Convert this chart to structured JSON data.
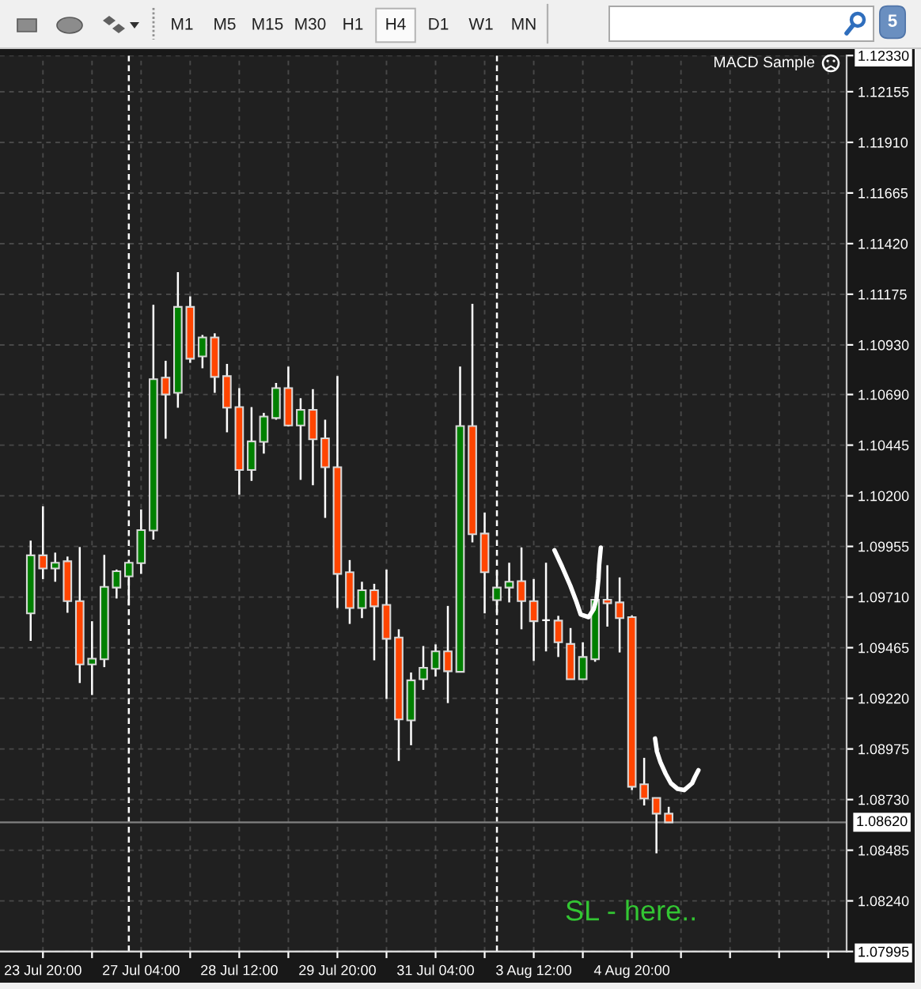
{
  "chart_data": {
    "type": "candlestick",
    "categories": [
      null,
      null,
      null,
      "23 Jul 20:00",
      null,
      null,
      null,
      null,
      null,
      null,
      null,
      "27 Jul 04:00",
      null,
      null,
      null,
      null,
      null,
      null,
      null,
      "28 Jul 12:00",
      null,
      null,
      null,
      null,
      null,
      null,
      null,
      "29 Jul 20:00",
      null,
      null,
      null,
      null,
      null,
      null,
      null,
      "31 Jul 04:00",
      null,
      null,
      null,
      null,
      null,
      null,
      null,
      "3 Aug 12:00",
      null,
      null,
      null,
      null,
      null,
      null,
      null,
      "4 Aug 20:00",
      null,
      null,
      null,
      null,
      null,
      null,
      null,
      null,
      null,
      null,
      null,
      null,
      null,
      null,
      null,
      null,
      null
    ],
    "ohlc": [
      null,
      null,
      [
        1.09631,
        1.09983,
        1.09498,
        1.09912
      ],
      [
        1.09912,
        1.10149,
        1.09797,
        1.09848
      ],
      [
        1.09848,
        1.09925,
        1.09784,
        1.09876
      ],
      [
        1.09883,
        1.09906,
        1.09634,
        1.0969
      ],
      [
        1.0969,
        1.09952,
        1.09294,
        1.09384
      ],
      [
        1.09384,
        1.09593,
        1.09236,
        1.09412
      ],
      [
        1.09409,
        1.09914,
        1.09371,
        1.09759
      ],
      [
        1.09756,
        1.09843,
        1.09703,
        1.09835
      ],
      [
        1.0981,
        1.09881,
        1.09669,
        1.09876
      ],
      [
        1.09874,
        1.10134,
        1.09822,
        1.10034
      ],
      [
        1.10032,
        1.11124,
        1.09988,
        1.10764
      ],
      [
        1.10772,
        1.10853,
        1.10476,
        1.1069
      ],
      [
        1.10698,
        1.11282,
        1.10626,
        1.11114
      ],
      [
        1.11114,
        1.11165,
        1.10843,
        1.10863
      ],
      [
        1.10874,
        1.10978,
        1.10817,
        1.10966
      ],
      [
        1.10966,
        1.10986,
        1.10698,
        1.10775
      ],
      [
        1.10779,
        1.10838,
        1.10507,
        1.10626
      ],
      [
        1.10629,
        1.10721,
        1.10205,
        1.10325
      ],
      [
        1.10325,
        1.10629,
        1.10272,
        1.10463
      ],
      [
        1.10461,
        1.10601,
        1.10404,
        1.10583
      ],
      [
        1.10576,
        1.10746,
        1.10568,
        1.10721
      ],
      [
        1.10721,
        1.10825,
        1.10535,
        1.1054
      ],
      [
        1.1054,
        1.10672,
        1.10277,
        1.10616
      ],
      [
        1.10616,
        1.10716,
        1.10251,
        1.10473
      ],
      [
        1.10478,
        1.10568,
        1.10093,
        1.10338
      ],
      [
        1.10338,
        1.10779,
        1.09657,
        1.09822
      ],
      [
        1.0983,
        1.09889,
        1.0958,
        1.09657
      ],
      [
        1.09657,
        1.09784,
        1.09608,
        1.09743
      ],
      [
        1.09743,
        1.09774,
        1.09404,
        1.09665
      ],
      [
        1.09672,
        1.09843,
        1.09217,
        1.09508
      ],
      [
        1.09514,
        1.09554,
        1.08917,
        1.09118
      ],
      [
        1.09113,
        1.09345,
        1.08993,
        1.09307
      ],
      [
        1.09312,
        1.09473,
        1.09261,
        1.09368
      ],
      [
        1.09363,
        1.09481,
        1.09325,
        1.09447
      ],
      [
        1.09447,
        1.09667,
        1.09197,
        1.09351
      ],
      [
        1.09348,
        1.10825,
        1.09348,
        1.10537
      ],
      [
        1.10537,
        1.11129,
        1.09975,
        1.10014
      ],
      [
        1.10017,
        1.10119,
        1.09631,
        1.0983
      ],
      [
        1.09695,
        1.09835,
        1.09634,
        1.09756
      ],
      [
        1.09756,
        1.09876,
        1.09684,
        1.09784
      ],
      [
        1.09787,
        1.0995,
        1.09554,
        1.0969
      ],
      [
        1.0969,
        1.09797,
        1.09401,
        1.09593
      ],
      [
        1.09598,
        1.09876,
        1.09447,
        1.09598
      ],
      [
        1.09596,
        1.09619,
        1.0942,
        1.09491
      ],
      [
        1.09483,
        1.0956,
        1.09312,
        1.09312
      ],
      [
        1.09312,
        1.09491,
        1.09312,
        1.0942
      ],
      [
        1.09409,
        1.097,
        1.09397,
        1.09697
      ],
      [
        1.09697,
        1.09864,
        1.09567,
        1.0968
      ],
      [
        1.09684,
        1.09805,
        1.09442,
        1.09608
      ],
      [
        1.09613,
        1.09621,
        1.08776,
        1.08792
      ],
      [
        1.08804,
        1.08932,
        1.08702,
        1.08735
      ],
      [
        1.08738,
        1.08738,
        1.0847,
        1.08662
      ],
      [
        1.08662,
        1.08695,
        1.0862,
        1.0862
      ],
      null,
      null,
      null,
      null,
      null,
      null,
      null,
      null,
      null,
      null,
      null,
      null,
      null,
      null
    ],
    "colors": [
      null,
      null,
      "#008000",
      "#ff4500",
      "#008000",
      "#ff4500",
      "#ff4500",
      "#008000",
      "#008000",
      "#008000",
      "#008000",
      "#008000",
      "#008000",
      "#ff4500",
      "#008000",
      "#ff4500",
      "#008000",
      "#ff4500",
      "#ff4500",
      "#ff4500",
      "#008000",
      "#008000",
      "#008000",
      "#ff4500",
      "#008000",
      "#ff4500",
      "#ff4500",
      "#ff4500",
      "#ff4500",
      "#008000",
      "#ff4500",
      "#ff4500",
      "#ff4500",
      "#008000",
      "#008000",
      "#008000",
      "#ff4500",
      "#008000",
      "#ff4500",
      "#ff4500",
      "#008000",
      "#008000",
      "#ff4500",
      "#ff4500",
      "#ffffff",
      "#ff4500",
      "#ff4500",
      "#008000",
      "#008000",
      "#ff4500",
      "#ff4500",
      "#ff4500",
      "#ff4500",
      "#ff4500",
      "#ff4500",
      null,
      null,
      null,
      null,
      null,
      null,
      null,
      null,
      null,
      null,
      null,
      null,
      null,
      null
    ],
    "ylim": [
      1.07995,
      1.1233
    ],
    "yticks": [
      {
        "value": 1.07995,
        "label": "1.07995"
      },
      {
        "value": 1.0824,
        "label": "1.08240"
      },
      {
        "value": 1.08485,
        "label": "1.08485"
      },
      {
        "value": 1.0873,
        "label": "1.08730"
      },
      {
        "value": 1.08975,
        "label": "1.08975"
      },
      {
        "value": 1.0922,
        "label": "1.09220"
      },
      {
        "value": 1.09465,
        "label": "1.09465"
      },
      {
        "value": 1.0971,
        "label": "1.09710"
      },
      {
        "value": 1.09955,
        "label": "1.09955"
      },
      {
        "value": 1.102,
        "label": "1.10200"
      },
      {
        "value": 1.10445,
        "label": "1.10445"
      },
      {
        "value": 1.1069,
        "label": "1.10690"
      },
      {
        "value": 1.1093,
        "label": "1.10930"
      },
      {
        "value": 1.11175,
        "label": "1.11175"
      },
      {
        "value": 1.1142,
        "label": "1.11420"
      },
      {
        "value": 1.11665,
        "label": "1.11665"
      },
      {
        "value": 1.1191,
        "label": "1.11910"
      },
      {
        "value": 1.12155,
        "label": "1.12155"
      },
      {
        "value": 1.1233,
        "label": "1.12330"
      }
    ],
    "grid": true,
    "ref_lines": [
      {
        "axis": "y",
        "value": 1.0862,
        "label": "1.08620",
        "color": "#808080",
        "line_style": "solid"
      }
    ],
    "annotations": [
      "M1",
      "M5",
      "M15",
      "M30",
      "H1",
      "H4",
      "D1",
      "W1",
      "MN",
      "5",
      "MACD Sample",
      "SL - here.."
    ]
  }
}
